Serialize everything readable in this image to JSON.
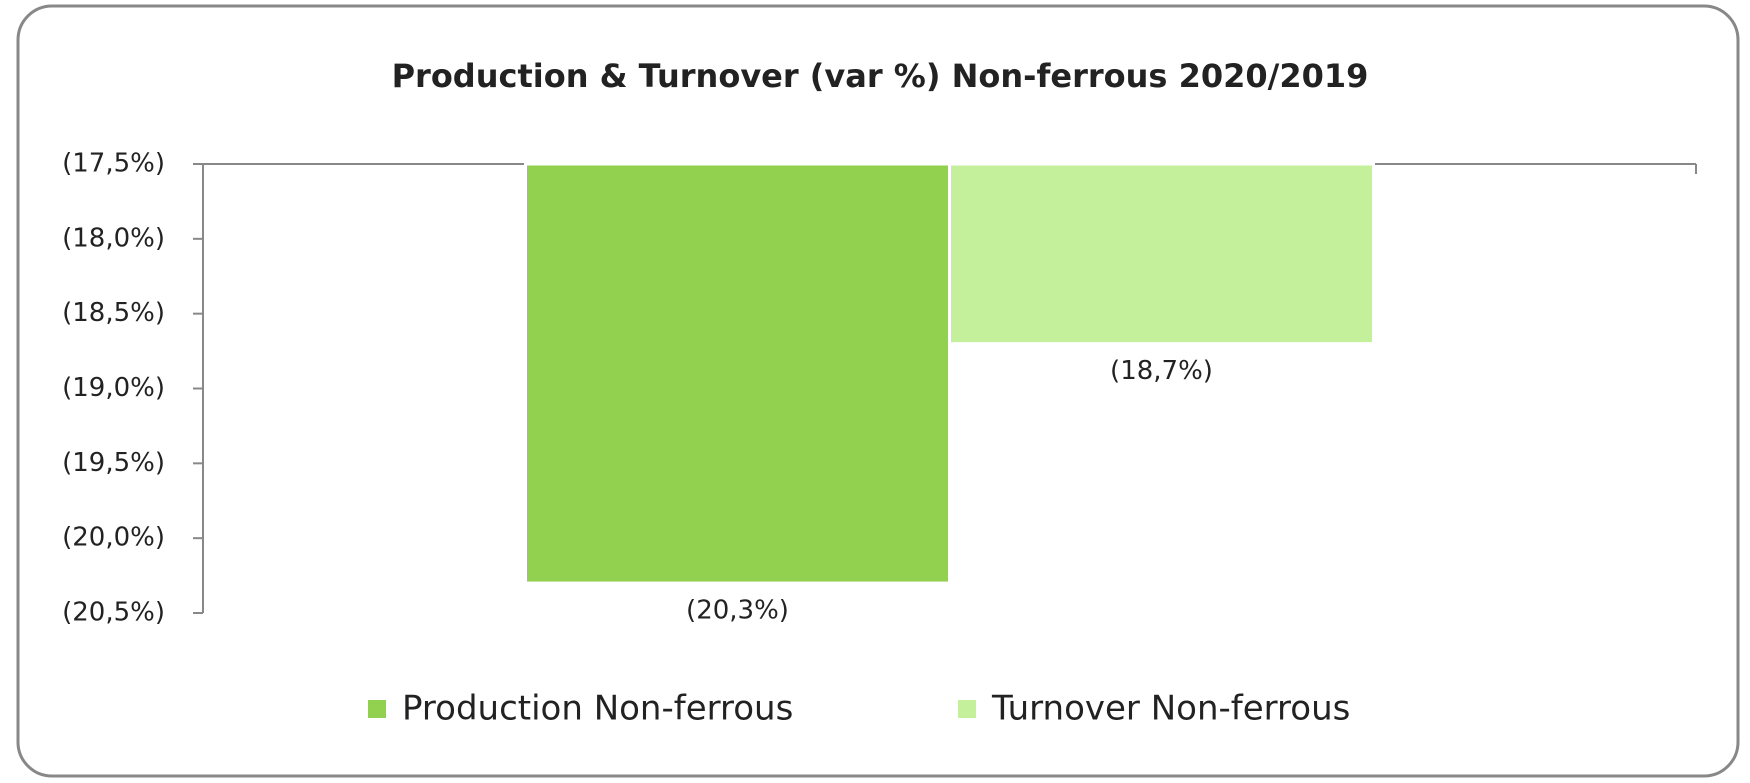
{
  "chart_data": {
    "type": "bar",
    "title": "Production & Turnover (var %) Non-ferrous 2020/2019",
    "categories": [
      null
    ],
    "series": [
      {
        "name": "Production Non-ferrous",
        "color": "#92d050",
        "values": [
          -20.3
        ],
        "value_labels": [
          "(20,3%)"
        ]
      },
      {
        "name": "Turnover Non-ferrous",
        "color": "#c4ef9b",
        "values": [
          -18.7
        ],
        "value_labels": [
          "(18,7%)"
        ]
      }
    ],
    "ylim": [
      -20.5,
      -17.5
    ],
    "yticks": [
      {
        "value": -17.5,
        "label": "(17,5%)"
      },
      {
        "value": -18.0,
        "label": "(18,0%)"
      },
      {
        "value": -18.5,
        "label": "(18,5%)"
      },
      {
        "value": -19.0,
        "label": "(19,0%)"
      },
      {
        "value": -19.5,
        "label": "(19,5%)"
      },
      {
        "value": -20.0,
        "label": "(20,0%)"
      },
      {
        "value": -20.5,
        "label": "(20,5%)"
      }
    ],
    "grid": false,
    "legend": "bottom"
  }
}
